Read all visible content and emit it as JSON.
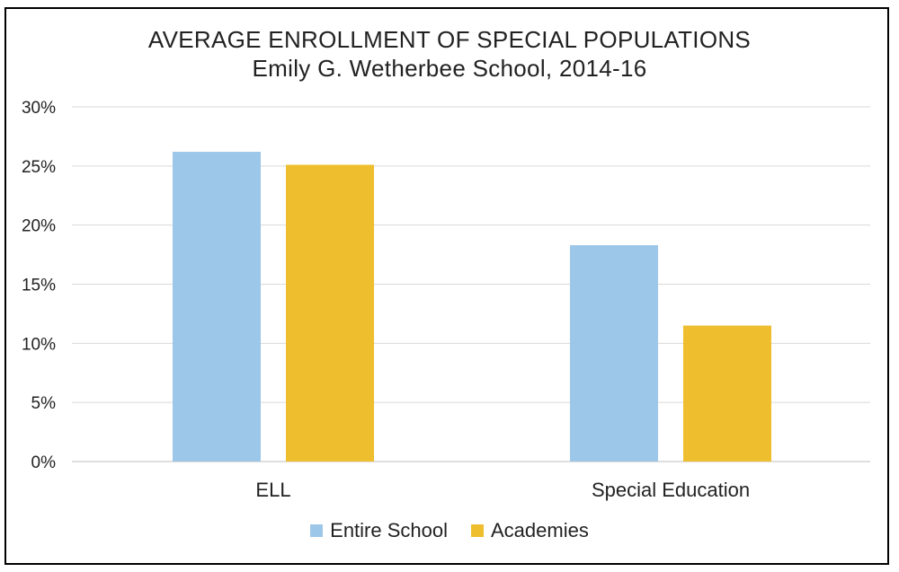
{
  "chart_data": {
    "type": "bar",
    "title": "AVERAGE ENROLLMENT OF SPECIAL POPULATIONS",
    "subtitle": "Emily G. Wetherbee School, 2014-16",
    "categories": [
      "ELL",
      "Special Education"
    ],
    "series": [
      {
        "name": "Entire School",
        "color": "#9dc7e9",
        "values": [
          26.2,
          18.3
        ]
      },
      {
        "name": "Academies",
        "color": "#efbe2f",
        "values": [
          25.1,
          11.5
        ]
      }
    ],
    "yticks": [
      "0%",
      "5%",
      "10%",
      "15%",
      "20%",
      "25%",
      "30%"
    ],
    "ylim": [
      0,
      30
    ],
    "ytick_step": 5,
    "xlabel": "",
    "ylabel": "",
    "grid": true,
    "legend_position": "bottom"
  }
}
